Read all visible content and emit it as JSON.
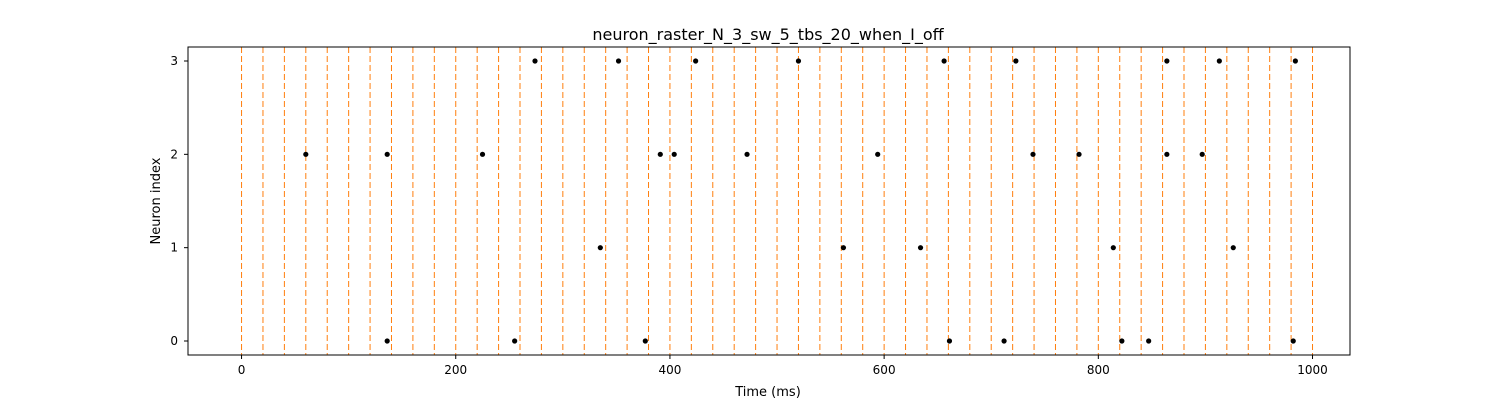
{
  "chart_data": {
    "type": "scatter",
    "title": "neuron_raster_N_3_sw_5_tbs_20_when_I_off",
    "xlabel": "Time (ms)",
    "ylabel": "Neuron index",
    "xlim": [
      -50,
      1035
    ],
    "ylim": [
      -0.15,
      3.15
    ],
    "xticks": [
      0,
      200,
      400,
      600,
      800,
      1000
    ],
    "yticks": [
      0,
      1,
      2,
      3
    ],
    "grid": false,
    "legend": "none",
    "point_color": "#000000",
    "vline_color": "#ff7f0e",
    "vlines": [
      0,
      20,
      40,
      60,
      80,
      100,
      120,
      140,
      160,
      180,
      200,
      220,
      240,
      260,
      280,
      300,
      320,
      340,
      360,
      380,
      400,
      420,
      440,
      460,
      480,
      500,
      520,
      540,
      560,
      580,
      600,
      620,
      640,
      660,
      680,
      700,
      720,
      740,
      760,
      780,
      800,
      820,
      840,
      860,
      880,
      900,
      920,
      940,
      960,
      980,
      1000
    ],
    "series": [
      {
        "neuron": 0,
        "spike_times": [
          136,
          255,
          377,
          661,
          712,
          822,
          847,
          982
        ]
      },
      {
        "neuron": 1,
        "spike_times": [
          335,
          562,
          634,
          814,
          926
        ]
      },
      {
        "neuron": 2,
        "spike_times": [
          60,
          136,
          225,
          391,
          404,
          472,
          594,
          739,
          782,
          864,
          897
        ]
      },
      {
        "neuron": 3,
        "spike_times": [
          274,
          352,
          424,
          520,
          656,
          723,
          864,
          913,
          984
        ]
      }
    ]
  }
}
